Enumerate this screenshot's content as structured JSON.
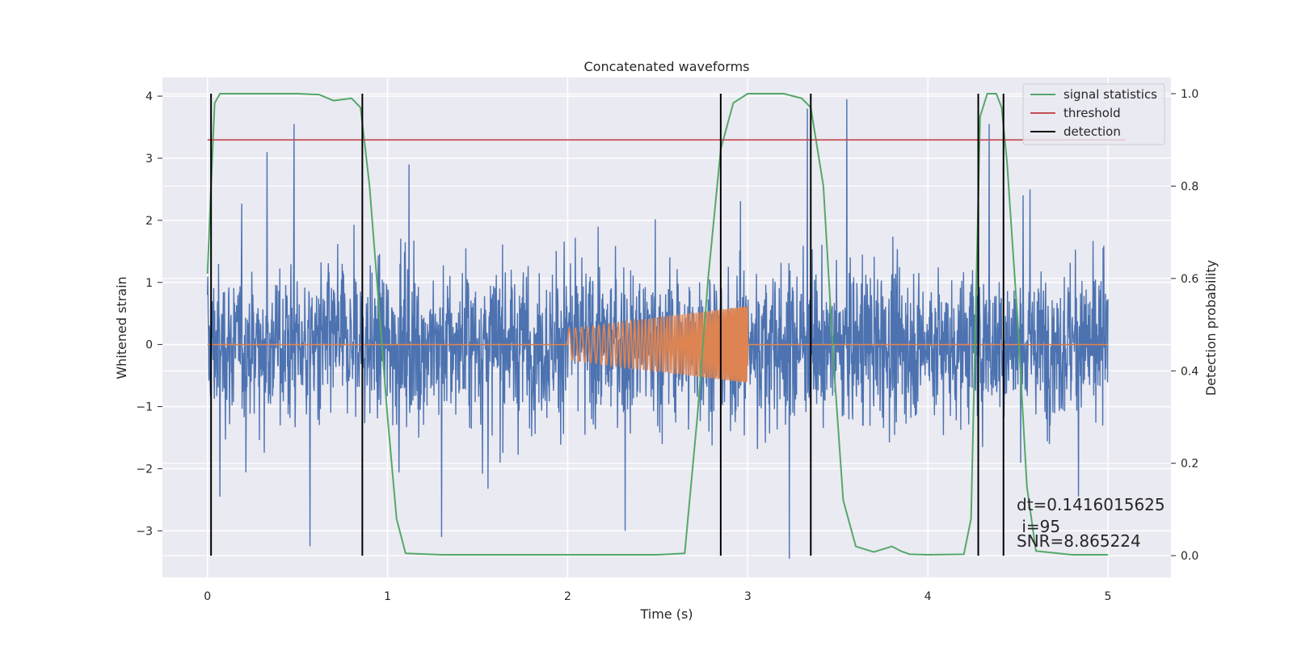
{
  "chart_data": {
    "type": "line",
    "title": "Concatenated waveforms",
    "xlabel": "Time (s)",
    "ylabel": "Whitened strain",
    "ylabel_right": "Detection probability",
    "xlim": [
      -0.25,
      5.35
    ],
    "ylim": [
      -3.75,
      4.3
    ],
    "ylim_right": [
      -0.047,
      1.035
    ],
    "x_ticks": [
      0,
      1,
      2,
      3,
      4,
      5
    ],
    "y_ticks": [
      -3,
      -2,
      -1,
      0,
      1,
      2,
      3,
      4
    ],
    "y_ticks_right": [
      0.0,
      0.2,
      0.4,
      0.6,
      0.8,
      1.0
    ],
    "x_tick_labels": [
      "0",
      "1",
      "2",
      "3",
      "4",
      "5"
    ],
    "y_tick_labels": [
      "−3",
      "−2",
      "−1",
      "0",
      "1",
      "2",
      "3",
      "4"
    ],
    "y_tick_labels_right": [
      "0.0",
      "0.2",
      "0.4",
      "0.6",
      "0.8",
      "1.0"
    ],
    "grid": true,
    "legend_position": "top-right",
    "legend": [
      {
        "label": "signal statistics",
        "color": "#55a868"
      },
      {
        "label": "threshold",
        "color": "#c44e52"
      },
      {
        "label": "detection",
        "color": "#000000"
      }
    ],
    "series": [
      {
        "name": "",
        "color": "#4c72b0",
        "description": "whitened noise strain",
        "x_range": [
          0,
          5
        ],
        "approx_amplitude": 1.0,
        "peak_values": [
          [
            0.48,
            3.55
          ],
          [
            0.33,
            3.1
          ],
          [
            1.12,
            2.9
          ],
          [
            3.33,
            3.8
          ],
          [
            3.55,
            3.95
          ],
          [
            4.34,
            3.55
          ],
          [
            1.3,
            -3.1
          ],
          [
            0.57,
            -3.25
          ],
          [
            2.32,
            -3.0
          ],
          [
            3.23,
            -3.45
          ],
          [
            0.07,
            -2.45
          ]
        ]
      },
      {
        "name": "",
        "color": "#dd8452",
        "description": "injected chirp waveform",
        "x_range": [
          0,
          5
        ],
        "chirp_start": 2.0,
        "chirp_end": 3.0,
        "chirp_amp_start": 0.25,
        "chirp_amp_end": 0.62
      },
      {
        "name": "signal statistics",
        "color": "#55a868",
        "axis": "right",
        "x": [
          0.0,
          0.02,
          0.04,
          0.07,
          0.1,
          0.5,
          0.62,
          0.7,
          0.8,
          0.85,
          0.9,
          0.95,
          1.0,
          1.05,
          1.1,
          1.3,
          2.5,
          2.65,
          2.72,
          2.78,
          2.85,
          2.92,
          3.0,
          3.2,
          3.3,
          3.35,
          3.42,
          3.48,
          3.53,
          3.6,
          3.7,
          3.8,
          3.85,
          3.9,
          4.0,
          4.2,
          4.24,
          4.27,
          4.29,
          4.33,
          4.38,
          4.41,
          4.44,
          4.5,
          4.55,
          4.6,
          4.8,
          5.0
        ],
        "y": [
          0.61,
          0.8,
          0.98,
          1.0,
          1.0,
          1.0,
          0.998,
          0.985,
          0.99,
          0.97,
          0.8,
          0.55,
          0.3,
          0.08,
          0.005,
          0.002,
          0.002,
          0.005,
          0.3,
          0.6,
          0.88,
          0.98,
          1.0,
          1.0,
          0.99,
          0.97,
          0.8,
          0.4,
          0.12,
          0.02,
          0.008,
          0.02,
          0.01,
          0.003,
          0.002,
          0.003,
          0.08,
          0.6,
          0.95,
          1.0,
          1.0,
          0.97,
          0.85,
          0.5,
          0.15,
          0.01,
          0.002,
          0.002
        ]
      },
      {
        "name": "threshold",
        "color": "#c44e52",
        "axis": "right",
        "x": [
          0,
          5.1
        ],
        "y": [
          0.9,
          0.9
        ]
      }
    ],
    "detections": [
      0.02,
      0.86,
      2.85,
      3.35,
      4.28,
      4.42
    ]
  },
  "annotation": {
    "dt_text": "dt=0.1416015625",
    "i_text": " i=95",
    "snr_text": "SNR=8.865224"
  }
}
